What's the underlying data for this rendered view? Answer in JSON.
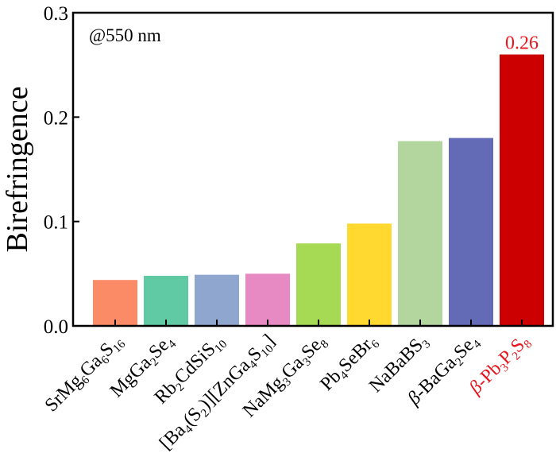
{
  "chart_data": {
    "type": "bar",
    "title": "",
    "xlabel": "",
    "ylabel": "Birefringence",
    "ylim": [
      0.0,
      0.3
    ],
    "yticks": [
      {
        "value": 0.0,
        "label": "0.0"
      },
      {
        "value": 0.1,
        "label": "0.1"
      },
      {
        "value": 0.2,
        "label": "0.2"
      },
      {
        "value": 0.3,
        "label": "0.3"
      }
    ],
    "annotation": "@550 nm",
    "grid": false,
    "highlight_color": "#e8141b",
    "categories": [
      {
        "name": "SrMg6Ga6S16",
        "parts": [
          [
            "Sr",
            ""
          ],
          [
            "Mg",
            ""
          ],
          [
            "6",
            "sub"
          ],
          [
            "Ga",
            ""
          ],
          [
            "6",
            "sub"
          ],
          [
            "S",
            ""
          ],
          [
            "16",
            "sub"
          ]
        ],
        "value": 0.044,
        "color": "#fb8a66",
        "highlight": false
      },
      {
        "name": "MgGa2Se4",
        "parts": [
          [
            "MgGa",
            ""
          ],
          [
            "2",
            "sub"
          ],
          [
            "Se",
            ""
          ],
          [
            "4",
            "sub"
          ]
        ],
        "value": 0.048,
        "color": "#5fcaa4",
        "highlight": false
      },
      {
        "name": "Rb2CdSiS10",
        "parts": [
          [
            "Rb",
            ""
          ],
          [
            "2",
            "sub"
          ],
          [
            "CdSiS",
            ""
          ],
          [
            "10",
            "sub"
          ]
        ],
        "value": 0.049,
        "color": "#8fa6ce",
        "highlight": false
      },
      {
        "name": "[Ba4(S2)][ZnGa4S10]",
        "parts": [
          [
            "[Ba",
            ""
          ],
          [
            "4",
            "sub"
          ],
          [
            "(S",
            ""
          ],
          [
            "2",
            "sub"
          ],
          [
            ")][ZnGa",
            ""
          ],
          [
            "4",
            "sub"
          ],
          [
            "S",
            ""
          ],
          [
            "10",
            "sub"
          ],
          [
            "]",
            ""
          ]
        ],
        "value": 0.05,
        "color": "#e78ac3",
        "highlight": false
      },
      {
        "name": "NaMg3Ga3Se8",
        "parts": [
          [
            "NaMg",
            ""
          ],
          [
            "3",
            "sub"
          ],
          [
            "Ga",
            ""
          ],
          [
            "3",
            "sub"
          ],
          [
            "Se",
            ""
          ],
          [
            "8",
            "sub"
          ]
        ],
        "value": 0.079,
        "color": "#a6d954",
        "highlight": false
      },
      {
        "name": "Pb4SeBr6",
        "parts": [
          [
            "Pb",
            ""
          ],
          [
            "4",
            "sub"
          ],
          [
            "SeBr",
            ""
          ],
          [
            "6",
            "sub"
          ]
        ],
        "value": 0.098,
        "color": "#ffd92f",
        "highlight": false
      },
      {
        "name": "NaBaBS3",
        "parts": [
          [
            "NaBaBS",
            ""
          ],
          [
            "3",
            "sub"
          ]
        ],
        "value": 0.177,
        "color": "#b3d69f",
        "highlight": false
      },
      {
        "name": "β-BaGa2Se4",
        "parts": [
          [
            "β",
            "italic"
          ],
          [
            "-BaGa",
            ""
          ],
          [
            "2",
            "sub"
          ],
          [
            "Se",
            ""
          ],
          [
            "4",
            "sub"
          ]
        ],
        "value": 0.18,
        "color": "#636bb7",
        "highlight": false
      },
      {
        "name": "β-Pb3P2S8",
        "parts": [
          [
            "β",
            "italic"
          ],
          [
            "-Pb",
            ""
          ],
          [
            "3",
            "sub"
          ],
          [
            "P",
            ""
          ],
          [
            "2",
            "sub"
          ],
          [
            "S",
            ""
          ],
          [
            "8",
            "sub"
          ]
        ],
        "value": 0.26,
        "color": "#cc0000",
        "highlight": true,
        "value_label": "0.26"
      }
    ]
  }
}
